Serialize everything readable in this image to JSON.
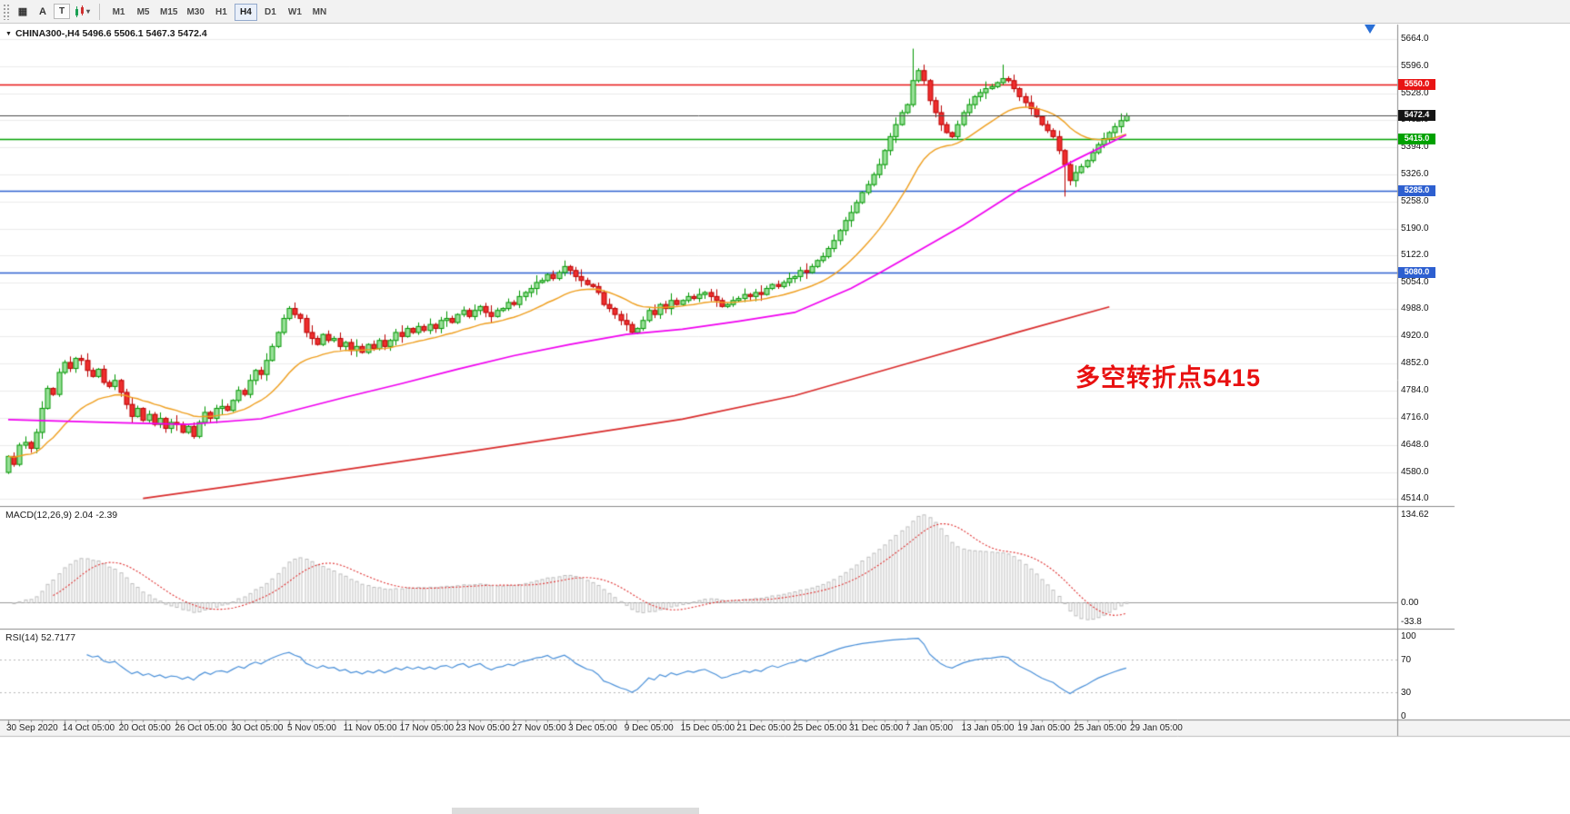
{
  "toolbar": {
    "tools": [
      {
        "name": "grid-tool-icon",
        "glyph": "▦"
      },
      {
        "name": "text-label-tool-icon",
        "glyph": "A"
      },
      {
        "name": "text-box-tool-icon",
        "glyph": "T"
      },
      {
        "name": "chevron-down-icon",
        "glyph": "▾"
      }
    ],
    "timeframes": [
      {
        "label": "M1",
        "active": false
      },
      {
        "label": "M5",
        "active": false
      },
      {
        "label": "M15",
        "active": false
      },
      {
        "label": "M30",
        "active": false
      },
      {
        "label": "H1",
        "active": false
      },
      {
        "label": "H4",
        "active": true
      },
      {
        "label": "D1",
        "active": false
      },
      {
        "label": "W1",
        "active": false
      },
      {
        "label": "MN",
        "active": false
      }
    ]
  },
  "chart": {
    "collapse_icon": "▼",
    "header": "CHINA300-,H4 5496.6 5506.1 5467.3 5472.4",
    "annotation": {
      "text": "多空转折点5415",
      "color": "#e81010"
    }
  },
  "macd": {
    "label": "MACD(12,26,9) 2.04 -2.39",
    "ticks": [
      "134.62",
      "0.00",
      "-33.8"
    ]
  },
  "rsi": {
    "label": "RSI(14) 52.7177",
    "ticks": [
      "100",
      "70",
      "30",
      "0"
    ],
    "levels": [
      70,
      30
    ]
  },
  "chart_data": {
    "type": "candlestick",
    "symbol": "CHINA300-",
    "timeframe": "H4",
    "ohlc_display": {
      "open": "5496.6",
      "high": "5506.1",
      "low": "5467.3",
      "close": "5472.4"
    },
    "ylim": [
      4514,
      5664
    ],
    "y_ticks": [
      "5664.0",
      "5596.0",
      "5528.0",
      "5462.0",
      "5394.0",
      "5326.0",
      "5258.0",
      "5190.0",
      "5122.0",
      "5054.0",
      "4988.0",
      "4920.0",
      "4852.0",
      "4784.0",
      "4716.0",
      "4648.0",
      "4580.0",
      "4514.0"
    ],
    "x_labels": [
      "30 Sep 2020",
      "14 Oct 05:00",
      "20 Oct 05:00",
      "26 Oct 05:00",
      "30 Oct 05:00",
      "5 Nov 05:00",
      "11 Nov 05:00",
      "17 Nov 05:00",
      "23 Nov 05:00",
      "27 Nov 05:00",
      "3 Dec 05:00",
      "9 Dec 05:00",
      "15 Dec 05:00",
      "21 Dec 05:00",
      "25 Dec 05:00",
      "31 Dec 05:00",
      "7 Jan 05:00",
      "13 Jan 05:00",
      "19 Jan 05:00",
      "25 Jan 05:00",
      "29 Jan 05:00"
    ],
    "first_open": 4580,
    "closes": [
      4620,
      4600,
      4648,
      4655,
      4640,
      4680,
      4740,
      4790,
      4775,
      4830,
      4855,
      4840,
      4865,
      4860,
      4835,
      4820,
      4838,
      4805,
      4795,
      4810,
      4780,
      4750,
      4720,
      4740,
      4710,
      4725,
      4700,
      4715,
      4690,
      4705,
      4700,
      4680,
      4695,
      4670,
      4705,
      4730,
      4715,
      4740,
      4745,
      4735,
      4760,
      4785,
      4775,
      4810,
      4835,
      4825,
      4860,
      4895,
      4930,
      4965,
      4990,
      4975,
      4965,
      4930,
      4915,
      4900,
      4925,
      4910,
      4915,
      4895,
      4905,
      4885,
      4895,
      4880,
      4900,
      4890,
      4910,
      4895,
      4910,
      4930,
      4920,
      4940,
      4930,
      4945,
      4935,
      4950,
      4940,
      4960,
      4965,
      4955,
      4975,
      4985,
      4970,
      4985,
      4995,
      4980,
      4970,
      4985,
      4990,
      5005,
      5000,
      5020,
      5030,
      5040,
      5055,
      5060,
      5075,
      5065,
      5080,
      5095,
      5085,
      5070,
      5060,
      5050,
      5045,
      5030,
      5000,
      4990,
      4975,
      4960,
      4950,
      4930,
      4940,
      4960,
      4985,
      4975,
      5000,
      4990,
      5010,
      5000,
      5010,
      5020,
      5015,
      5025,
      5030,
      5020,
      5010,
      4995,
      5000,
      5010,
      5015,
      5025,
      5020,
      5030,
      5025,
      5040,
      5050,
      5045,
      5055,
      5065,
      5070,
      5085,
      5080,
      5095,
      5110,
      5120,
      5140,
      5160,
      5185,
      5210,
      5230,
      5255,
      5280,
      5300,
      5325,
      5350,
      5385,
      5420,
      5450,
      5480,
      5500,
      5560,
      5585,
      5560,
      5510,
      5480,
      5450,
      5430,
      5420,
      5450,
      5480,
      5500,
      5520,
      5530,
      5540,
      5545,
      5555,
      5565,
      5560,
      5540,
      5520,
      5505,
      5490,
      5470,
      5450,
      5435,
      5420,
      5385,
      5350,
      5310,
      5330,
      5345,
      5360,
      5380,
      5400,
      5415,
      5430,
      5445,
      5460,
      5472
    ],
    "wick_override_high": {
      "161": 5640,
      "177": 5600
    },
    "wick_override_low": {
      "188": 5270
    },
    "up_fill": "#98e098",
    "up_border": "#009600",
    "down_fill": "#ee2e2e",
    "down_border": "#bb0000",
    "current_price": {
      "value": 5472.4,
      "label": "5472.4",
      "line_color": "#4a4a4a",
      "tag_color": "#141414"
    },
    "levels": [
      {
        "name": "resistance-5550",
        "value": 5550.0,
        "label": "5550.0",
        "color": "#e81414"
      },
      {
        "name": "pivot-5415",
        "value": 5415.0,
        "label": "5415.0",
        "color": "#00a100"
      },
      {
        "name": "support-5285",
        "value": 5285.0,
        "label": "5285.0",
        "color": "#2d5fd0"
      },
      {
        "name": "support-5080",
        "value": 5080.0,
        "label": "5080.0",
        "color": "#2d5fd0"
      }
    ],
    "moving_averages": {
      "fast": {
        "name": "ma-fast-orange",
        "color": "#ef9f1f",
        "period": 20
      },
      "medium": {
        "name": "ma-medium-magenta",
        "color": "#f000f0",
        "anchors": [
          [
            0,
            4712
          ],
          [
            20,
            4704
          ],
          [
            32,
            4700
          ],
          [
            45,
            4714
          ],
          [
            60,
            4768
          ],
          [
            70,
            4802
          ],
          [
            80,
            4838
          ],
          [
            90,
            4872
          ],
          [
            100,
            4900
          ],
          [
            110,
            4925
          ],
          [
            120,
            4938
          ],
          [
            130,
            4958
          ],
          [
            140,
            4980
          ],
          [
            150,
            5040
          ],
          [
            155,
            5078
          ],
          [
            160,
            5118
          ],
          [
            170,
            5198
          ],
          [
            180,
            5288
          ],
          [
            190,
            5362
          ],
          [
            199,
            5424
          ]
        ]
      },
      "slow": {
        "name": "ma-slow-red",
        "color": "#d92b2b",
        "anchors": [
          [
            24,
            4515
          ],
          [
            40,
            4546
          ],
          [
            60,
            4587
          ],
          [
            80,
            4628
          ],
          [
            100,
            4670
          ],
          [
            120,
            4713
          ],
          [
            140,
            4772
          ],
          [
            160,
            4852
          ],
          [
            180,
            4932
          ],
          [
            196,
            4994
          ]
        ]
      }
    },
    "macd_histogram_color": "#bdbdbd",
    "macd_signal_color": "#e03131",
    "rsi_line_color": "#4a90d9"
  }
}
